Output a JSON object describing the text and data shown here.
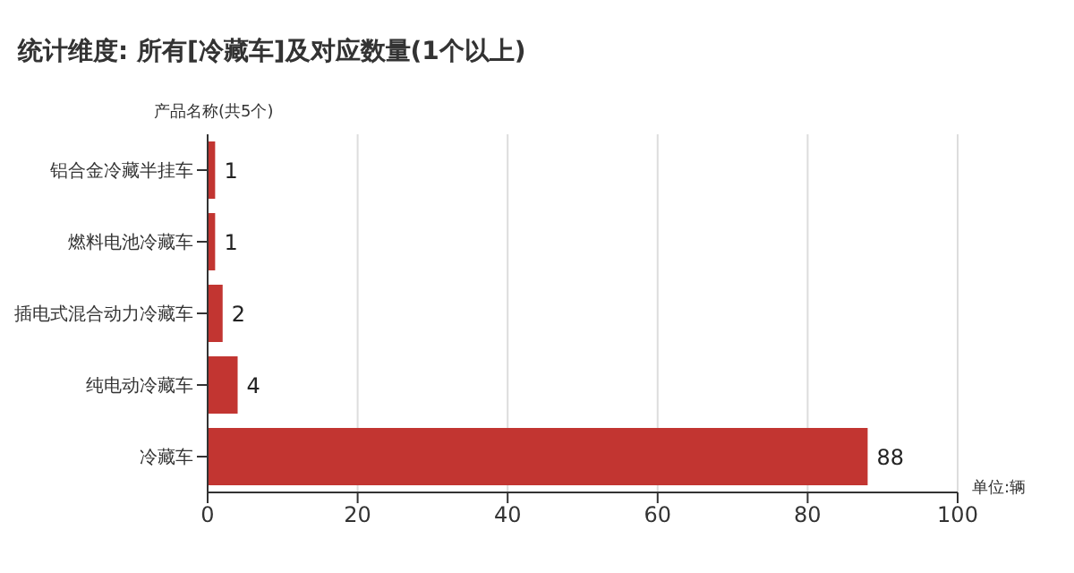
{
  "chart_data": {
    "type": "bar",
    "orientation": "horizontal",
    "title": "统计维度: 所有[冷藏车]及对应数量(1个以上)",
    "ylabel": "产品名称(共5个)",
    "xlabel": "单位:辆",
    "categories": [
      "铝合金冷藏半挂车",
      "燃料电池冷藏车",
      "插电式混合动力冷藏车",
      "纯电动冷藏车",
      "冷藏车"
    ],
    "values": [
      1,
      1,
      2,
      4,
      88
    ],
    "color": "#c23531",
    "xlim": [
      0,
      100
    ],
    "xticks": [
      0,
      20,
      40,
      60,
      80,
      100
    ],
    "grid": "x",
    "data_labels": true
  }
}
